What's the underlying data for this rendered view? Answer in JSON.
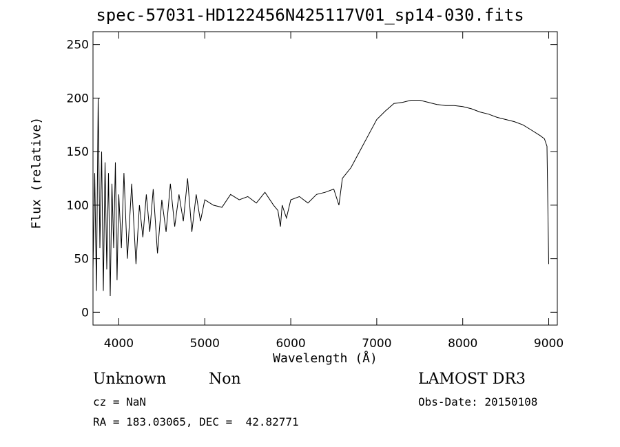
{
  "chart_data": {
    "type": "line",
    "title": "spec-57031-HD122456N425117V01_sp14-030.fits",
    "xlabel": "Wavelength (Å)",
    "ylabel": "Flux (relative)",
    "xlim": [
      3700,
      9100
    ],
    "ylim": [
      -12,
      262
    ],
    "xticks": [
      4000,
      5000,
      6000,
      7000,
      8000,
      9000
    ],
    "yticks": [
      0,
      50,
      100,
      150,
      200,
      250
    ],
    "grid": false,
    "series": [
      {
        "x": [
          3700,
          3720,
          3740,
          3760,
          3780,
          3800,
          3820,
          3840,
          3860,
          3880,
          3900,
          3920,
          3940,
          3960,
          3980,
          4000,
          4030,
          4060,
          4100,
          4150,
          4200,
          4240,
          4280,
          4320,
          4360,
          4400,
          4450,
          4500,
          4550,
          4600,
          4650,
          4700,
          4750,
          4800,
          4850,
          4900,
          4950,
          5000,
          5100,
          5200,
          5300,
          5400,
          5500,
          5600,
          5700,
          5800,
          5850,
          5880,
          5900,
          5950,
          6000,
          6100,
          6200,
          6300,
          6400,
          6500,
          6560,
          6600,
          6700,
          6800,
          6900,
          7000,
          7100,
          7200,
          7300,
          7400,
          7500,
          7600,
          7700,
          7800,
          7900,
          8000,
          8100,
          8200,
          8300,
          8400,
          8500,
          8600,
          8700,
          8800,
          8900,
          8950,
          8980,
          9000
        ],
        "y": [
          40,
          130,
          20,
          200,
          60,
          150,
          20,
          140,
          40,
          130,
          15,
          120,
          60,
          140,
          30,
          110,
          60,
          130,
          50,
          120,
          45,
          100,
          70,
          110,
          75,
          115,
          55,
          105,
          75,
          120,
          80,
          110,
          85,
          125,
          75,
          110,
          85,
          105,
          100,
          98,
          110,
          105,
          108,
          102,
          112,
          100,
          95,
          80,
          100,
          88,
          105,
          108,
          102,
          110,
          112,
          115,
          100,
          125,
          135,
          150,
          165,
          180,
          188,
          195,
          196,
          198,
          198,
          196,
          194,
          193,
          193,
          192,
          190,
          187,
          185,
          182,
          180,
          178,
          175,
          170,
          165,
          162,
          155,
          45
        ]
      }
    ]
  },
  "footer": {
    "object_type": "Unknown",
    "object_class": "Non",
    "survey": "LAMOST DR3",
    "redshift": "cz = NaN",
    "obs_date": "Obs-Date: 20150108",
    "coords": "RA = 183.03065, DEC =  42.82771"
  }
}
